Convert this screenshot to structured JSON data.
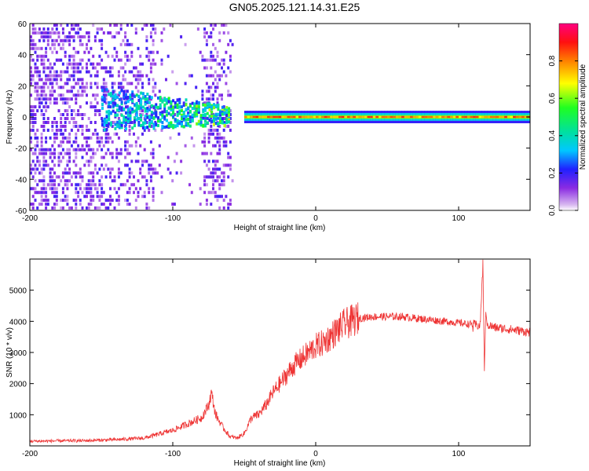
{
  "title": "GN05.2025.121.14.31.E25",
  "chart_data": [
    {
      "type": "heatmap",
      "title": "GN05.2025.121.14.31.E25",
      "xlabel": "Height of straight line (km)",
      "ylabel": "Frequency (Hz)",
      "xlim": [
        -200,
        150
      ],
      "ylim": [
        -60,
        60
      ],
      "xticks": [
        "-200",
        "-100",
        "0",
        "100"
      ],
      "yticks": [
        "60",
        "40",
        "20",
        "0",
        "-20",
        "-40",
        "-60"
      ],
      "colorbar": {
        "label": "Normalized spectral amplitude",
        "range": [
          0,
          1
        ],
        "ticks": [
          "0.0",
          "0.2",
          "0.4",
          "0.6",
          "0.8"
        ]
      },
      "features": [
        {
          "name": "noise_scatter",
          "x_range": [
            -200,
            -55
          ],
          "y_range": [
            -60,
            60
          ],
          "amplitude": 0.15
        },
        {
          "name": "converging_band",
          "x_range": [
            -150,
            -60
          ],
          "y_center": 5,
          "amplitude": 0.35
        },
        {
          "name": "narrow_carrier_line",
          "x_range": [
            -50,
            150
          ],
          "y_center": 0,
          "amplitude": 0.9
        }
      ]
    },
    {
      "type": "line",
      "xlabel": "Height of straight line (km)",
      "ylabel": "SNR (10 * v/v)",
      "xlim": [
        -200,
        150
      ],
      "ylim": [
        0,
        6000
      ],
      "xticks": [
        "-200",
        "-100",
        "0",
        "100"
      ],
      "yticks": [
        "5000",
        "4000",
        "3000",
        "2000",
        "1000"
      ],
      "series": [
        {
          "name": "SNR",
          "color": "#ee3333",
          "x": [
            -200,
            -180,
            -160,
            -140,
            -120,
            -100,
            -90,
            -80,
            -75,
            -73,
            -70,
            -65,
            -60,
            -55,
            -50,
            -45,
            -40,
            -35,
            -30,
            -25,
            -20,
            -15,
            -10,
            -5,
            0,
            5,
            10,
            15,
            20,
            25,
            30,
            40,
            60,
            80,
            100,
            110,
            115,
            117,
            118,
            119,
            120,
            125,
            135,
            150
          ],
          "values": [
            150,
            160,
            170,
            200,
            250,
            500,
            700,
            900,
            1300,
            1700,
            1000,
            600,
            300,
            250,
            400,
            900,
            1000,
            1300,
            1700,
            2000,
            2300,
            2600,
            2800,
            3000,
            3200,
            3300,
            3500,
            3700,
            3900,
            4000,
            4100,
            4150,
            4150,
            4050,
            3950,
            3900,
            3850,
            5800,
            2400,
            4300,
            3900,
            3800,
            3750,
            3650
          ]
        }
      ]
    }
  ]
}
